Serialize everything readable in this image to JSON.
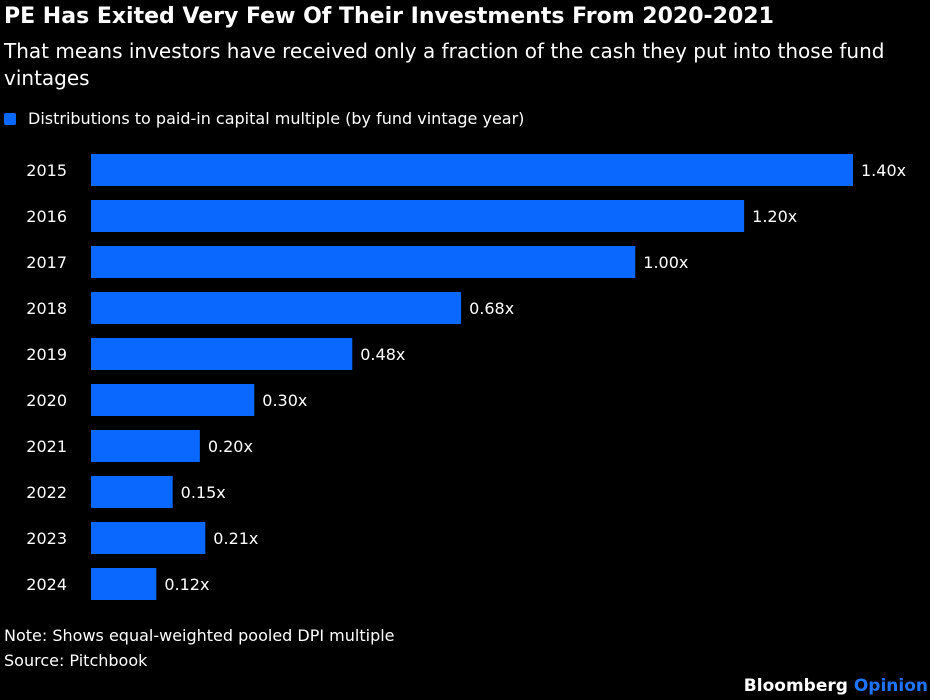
{
  "header": {
    "title": "PE Has Exited Very Few Of Their Investments From 2020-2021",
    "subtitle": "That means investors have received only a fraction of the cash they put into those fund vintages"
  },
  "legend": {
    "label": "Distributions to paid-in capital multiple (by fund vintage year)"
  },
  "footer": {
    "note": "Note: Shows equal-weighted pooled DPI multiple",
    "source": "Source: Pitchbook",
    "brand_main": "Bloomberg",
    "brand_sub": "Opinion"
  },
  "colors": {
    "background": "#000000",
    "bar": "#0a68ff",
    "text": "#ffffff",
    "brand_accent": "#1f73ff"
  },
  "chart_data": {
    "type": "bar",
    "orientation": "horizontal",
    "categories": [
      "2015",
      "2016",
      "2017",
      "2018",
      "2019",
      "2020",
      "2021",
      "2022",
      "2023",
      "2024"
    ],
    "series": [
      {
        "name": "Distributions to paid-in capital multiple (by fund vintage year)",
        "values": [
          1.4,
          1.2,
          1.0,
          0.68,
          0.48,
          0.3,
          0.2,
          0.15,
          0.21,
          0.12
        ],
        "labels": [
          "1.40x",
          "1.20x",
          "1.00x",
          "0.68x",
          "0.48x",
          "0.30x",
          "0.20x",
          "0.15x",
          "0.21x",
          "0.12x"
        ]
      }
    ],
    "xlim": [
      0,
      1.4
    ],
    "grid": false,
    "legend_position": "top-left"
  }
}
